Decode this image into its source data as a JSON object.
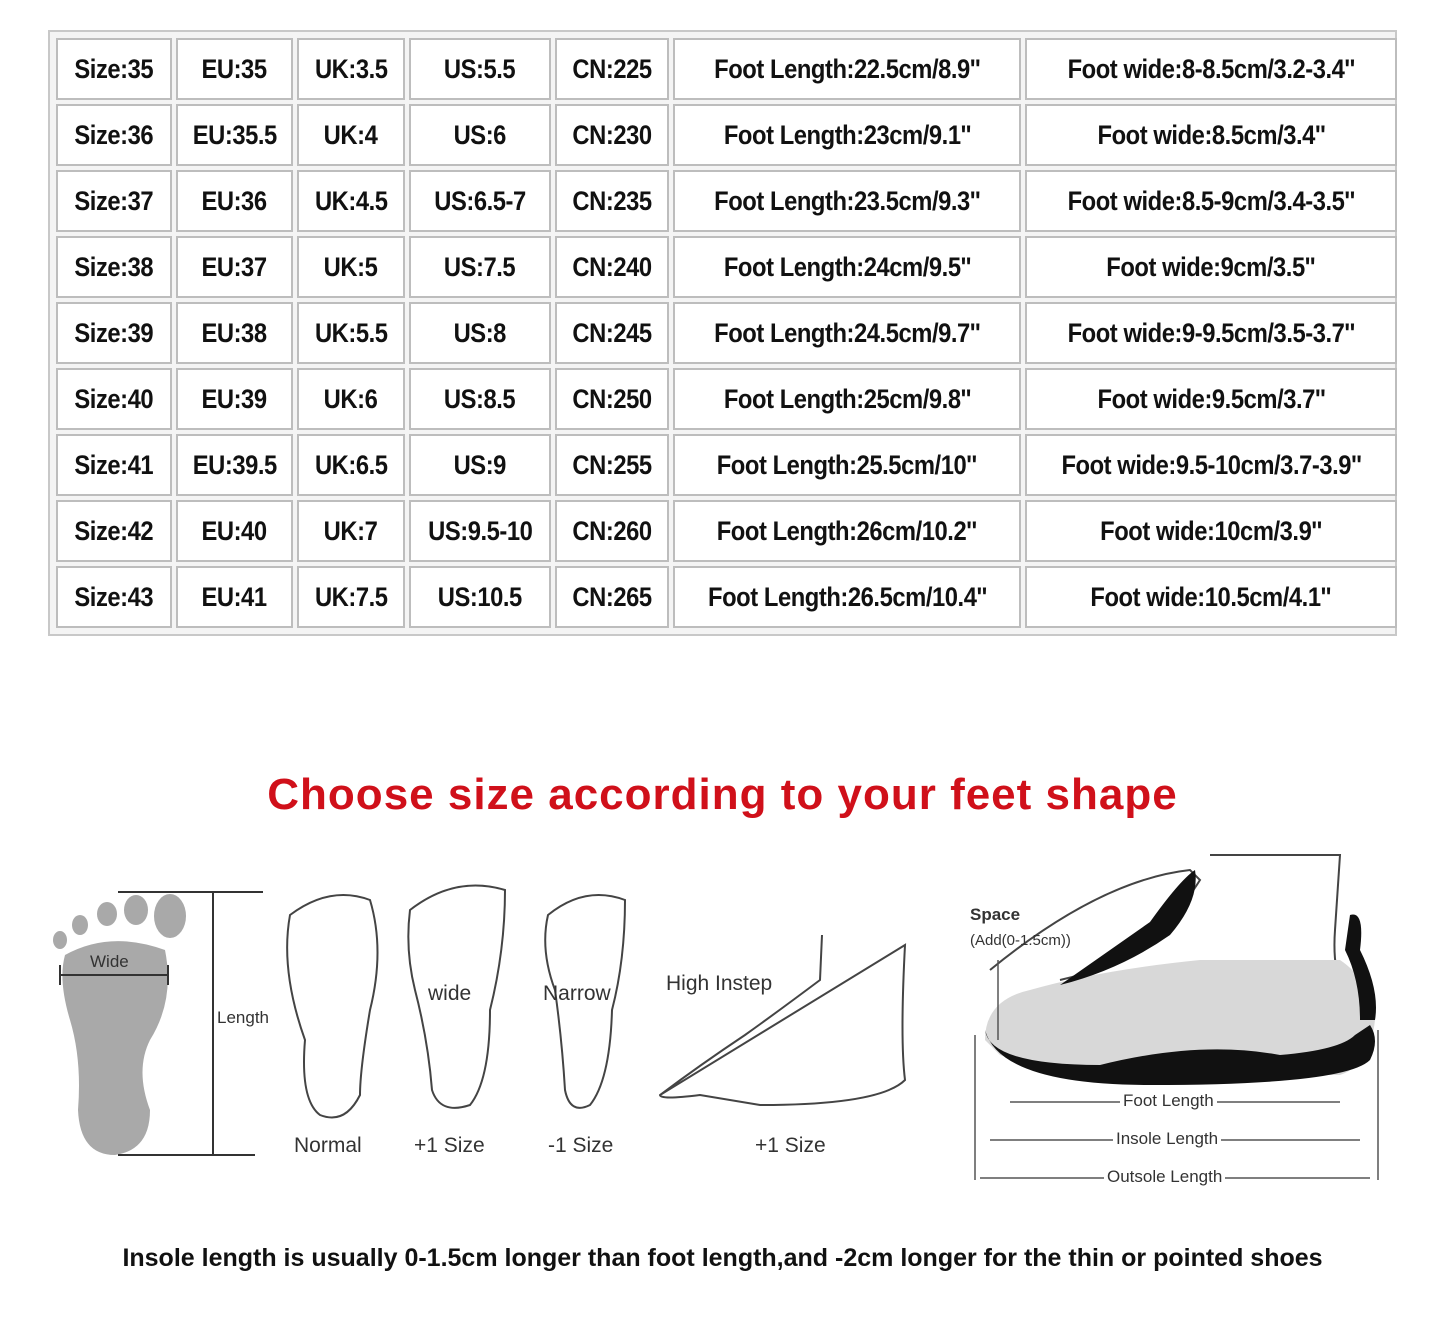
{
  "size_table": {
    "rows": [
      [
        "Size:35",
        "EU:35",
        "UK:3.5",
        "US:5.5",
        "CN:225",
        "Foot Length:22.5cm/8.9''",
        "Foot wide:8-8.5cm/3.2-3.4''"
      ],
      [
        "Size:36",
        "EU:35.5",
        "UK:4",
        "US:6",
        "CN:230",
        "Foot Length:23cm/9.1''",
        "Foot wide:8.5cm/3.4''"
      ],
      [
        "Size:37",
        "EU:36",
        "UK:4.5",
        "US:6.5-7",
        "CN:235",
        "Foot Length:23.5cm/9.3''",
        "Foot wide:8.5-9cm/3.4-3.5''"
      ],
      [
        "Size:38",
        "EU:37",
        "UK:5",
        "US:7.5",
        "CN:240",
        "Foot Length:24cm/9.5''",
        "Foot wide:9cm/3.5''"
      ],
      [
        "Size:39",
        "EU:38",
        "UK:5.5",
        "US:8",
        "CN:245",
        "Foot Length:24.5cm/9.7''",
        "Foot wide:9-9.5cm/3.5-3.7''"
      ],
      [
        "Size:40",
        "EU:39",
        "UK:6",
        "US:8.5",
        "CN:250",
        "Foot Length:25cm/9.8''",
        "Foot wide:9.5cm/3.7''"
      ],
      [
        "Size:41",
        "EU:39.5",
        "UK:6.5",
        "US:9",
        "CN:255",
        "Foot Length:25.5cm/10''",
        "Foot wide:9.5-10cm/3.7-3.9''"
      ],
      [
        "Size:42",
        "EU:40",
        "UK:7",
        "US:9.5-10",
        "CN:260",
        "Foot Length:26cm/10.2''",
        "Foot wide:10cm/3.9''"
      ],
      [
        "Size:43",
        "EU:41",
        "UK:7.5",
        "US:10.5",
        "CN:265",
        "Foot Length:26.5cm/10.4''",
        "Foot wide:10.5cm/4.1''"
      ]
    ]
  },
  "headline": "Choose size according to your feet shape",
  "headline_color": "#d0101a",
  "diagrams": {
    "measure": {
      "wide": "Wide",
      "length": "Length"
    },
    "normal": {
      "caption": "Normal"
    },
    "wide": {
      "label": "wide",
      "caption": "+1 Size"
    },
    "narrow": {
      "label": "Narrow",
      "caption": "-1 Size"
    },
    "high_instep": {
      "label": "High Instep",
      "caption": "+1 Size"
    },
    "shoe": {
      "space": "Space",
      "space_note": "(Add(0-1.5cm))",
      "foot_length": "Foot Length",
      "insole_length": "Insole Length",
      "outsole_length": "Outsole Length"
    }
  },
  "footer": "Insole length is usually 0-1.5cm longer than foot length,and -2cm longer for the thin or pointed shoes"
}
